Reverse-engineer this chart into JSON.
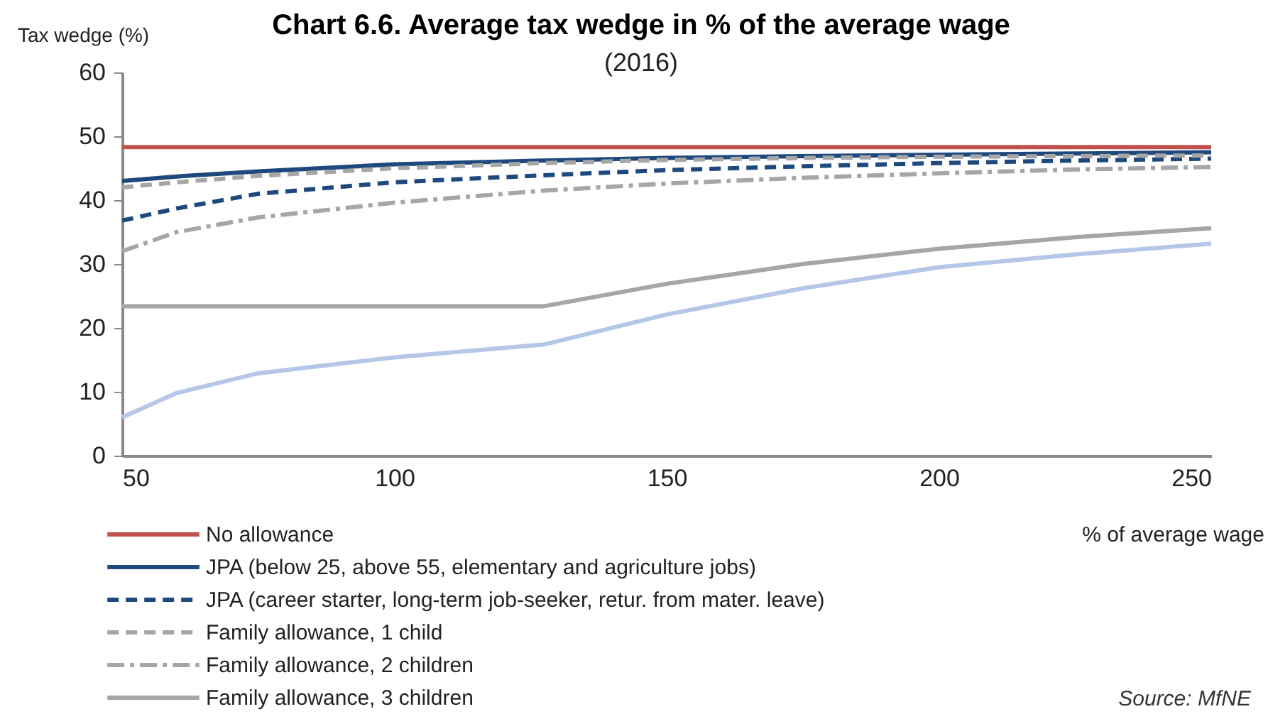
{
  "chart_data": {
    "type": "line",
    "title": "Chart 6.6. Average tax wedge in % of the average wage",
    "subtitle": "(2016)",
    "xlabel": "% of average wage",
    "ylabel": "Tax wedge (%)",
    "x": [
      50,
      60,
      75,
      100,
      127.5,
      150,
      175,
      200,
      225,
      250
    ],
    "xlim": [
      50,
      250
    ],
    "xticks": [
      50,
      100,
      150,
      200,
      250
    ],
    "ylim": [
      0,
      60
    ],
    "yticks": [
      0,
      10,
      20,
      30,
      40,
      50,
      60
    ],
    "grid": false,
    "legend": "bottom",
    "marker": "none",
    "series": [
      {
        "name": "No allowance",
        "color": "#c0504d",
        "line_style": "solid",
        "values": [
          48.3,
          48.3,
          48.3,
          48.3,
          48.3,
          48.3,
          48.3,
          48.3,
          48.3,
          48.3
        ]
      },
      {
        "name": "JPA (below 25, above 55, elementary and agriculture jobs)",
        "color": "#1f497d",
        "line_style": "solid",
        "values": [
          43.0,
          43.7,
          44.5,
          45.6,
          46.2,
          46.6,
          46.9,
          47.1,
          47.3,
          47.5
        ]
      },
      {
        "name": "JPA (career starter, long-term job-seeker, retur. from mater. leave)",
        "color": "#1f497d",
        "line_style": "dashed",
        "values": [
          36.8,
          38.7,
          41.0,
          42.8,
          43.9,
          44.7,
          45.3,
          45.8,
          46.2,
          46.5
        ]
      },
      {
        "name": "Family allowance, 1 child",
        "color": "#a6a6a6",
        "line_style": "dashed",
        "values": [
          42.0,
          42.8,
          43.8,
          45.0,
          45.8,
          46.3,
          46.6,
          46.8,
          46.9,
          47.0
        ]
      },
      {
        "name": "Family allowance, 2 children",
        "color": "#a6a6a6",
        "line_style": "dashdot",
        "values": [
          32.0,
          35.0,
          37.3,
          39.6,
          41.5,
          42.6,
          43.5,
          44.2,
          44.8,
          45.2
        ]
      },
      {
        "name": "Family allowance, 3 children",
        "color": "#a6a6a6",
        "line_style": "solid",
        "values": [
          23.4,
          23.4,
          23.4,
          23.4,
          23.4,
          26.9,
          30.0,
          32.4,
          34.2,
          35.6
        ]
      },
      {
        "color": "#b4c7e7",
        "line_style": "solid",
        "values": [
          6.0,
          9.8,
          12.9,
          15.4,
          17.4,
          22.1,
          26.2,
          29.5,
          31.5,
          33.2
        ]
      }
    ],
    "annotations": [
      "Source: MfNE"
    ]
  }
}
